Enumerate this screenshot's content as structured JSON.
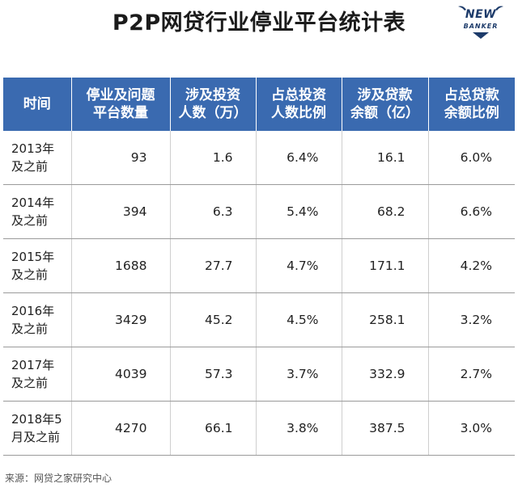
{
  "title": "P2P网贷行业停业平台统计表",
  "logo": {
    "line1": "NEW",
    "line2": "BANKER",
    "icon": "newbanker-logo"
  },
  "table": {
    "headers": [
      {
        "line1": "时间",
        "line2": ""
      },
      {
        "line1": "停业及问题",
        "line2": "平台数量"
      },
      {
        "line1": "涉及投资",
        "line2": "人数（万）"
      },
      {
        "line1": "占总投资",
        "line2": "人数比例"
      },
      {
        "line1": "涉及贷款",
        "line2": "余额（亿）"
      },
      {
        "line1": "占总贷款",
        "line2": "余额比例"
      }
    ],
    "rows": [
      {
        "period1": "2013年",
        "period2": "及之前",
        "platforms": "93",
        "investors": "1.6",
        "investor_ratio": "6.4%",
        "loan_balance": "16.1",
        "loan_ratio": "6.0%"
      },
      {
        "period1": "2014年",
        "period2": "及之前",
        "platforms": "394",
        "investors": "6.3",
        "investor_ratio": "5.4%",
        "loan_balance": "68.2",
        "loan_ratio": "6.6%"
      },
      {
        "period1": "2015年",
        "period2": "及之前",
        "platforms": "1688",
        "investors": "27.7",
        "investor_ratio": "4.7%",
        "loan_balance": "171.1",
        "loan_ratio": "4.2%"
      },
      {
        "period1": "2016年",
        "period2": "及之前",
        "platforms": "3429",
        "investors": "45.2",
        "investor_ratio": "4.5%",
        "loan_balance": "258.1",
        "loan_ratio": "3.2%"
      },
      {
        "period1": "2017年",
        "period2": "及之前",
        "platforms": "4039",
        "investors": "57.3",
        "investor_ratio": "3.7%",
        "loan_balance": "332.9",
        "loan_ratio": "2.7%"
      },
      {
        "period1": "2018年5",
        "period2": "月及之前",
        "platforms": "4270",
        "investors": "66.1",
        "investor_ratio": "3.8%",
        "loan_balance": "387.5",
        "loan_ratio": "3.0%"
      }
    ]
  },
  "source": "来源：网贷之家研究中心",
  "colors": {
    "header_bg": "#3a6ab0",
    "header_text": "#ffffff",
    "logo": "#1d3b6a"
  }
}
